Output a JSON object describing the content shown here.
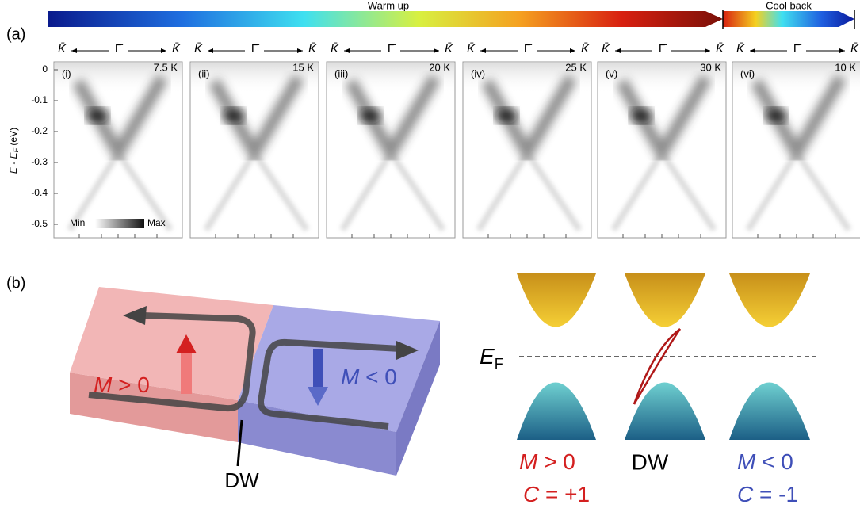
{
  "panel_a": {
    "label": "(a)",
    "warm_up": "Warm up",
    "cool_back": "Cool back",
    "momentum_axis": {
      "left": "K̄",
      "center": "Γ̄",
      "right": "K̄"
    },
    "y_axis": {
      "main": "E - E",
      "sub": "F",
      "unit": " (eV)",
      "ticks": [
        0,
        -0.1,
        -0.2,
        -0.3,
        -0.4,
        -0.5
      ]
    },
    "colorbar": {
      "min": "Min",
      "max": "Max"
    },
    "panels": [
      {
        "index": "(i)",
        "temperature": "7.5 K"
      },
      {
        "index": "(ii)",
        "temperature": "15 K"
      },
      {
        "index": "(iii)",
        "temperature": "20 K"
      },
      {
        "index": "(iv)",
        "temperature": "25 K"
      },
      {
        "index": "(v)",
        "temperature": "30 K"
      },
      {
        "index": "(vi)",
        "temperature": "10 K"
      }
    ]
  },
  "panel_b": {
    "label": "(b)",
    "block": {
      "left": {
        "symbol": "M",
        "relation": " > 0"
      },
      "right": {
        "symbol": "M",
        "relation": " < 0"
      },
      "wall": "DW"
    },
    "bands": {
      "fermi": {
        "main": "E",
        "sub": "F"
      },
      "columns": [
        {
          "m_symbol": "M",
          "m_relation": " > 0",
          "c_symbol": "C",
          "c_relation": " = +1"
        },
        {
          "name": "DW"
        },
        {
          "m_symbol": "M",
          "m_relation": " < 0",
          "c_symbol": "C",
          "c_relation": " = -1"
        }
      ]
    }
  }
}
